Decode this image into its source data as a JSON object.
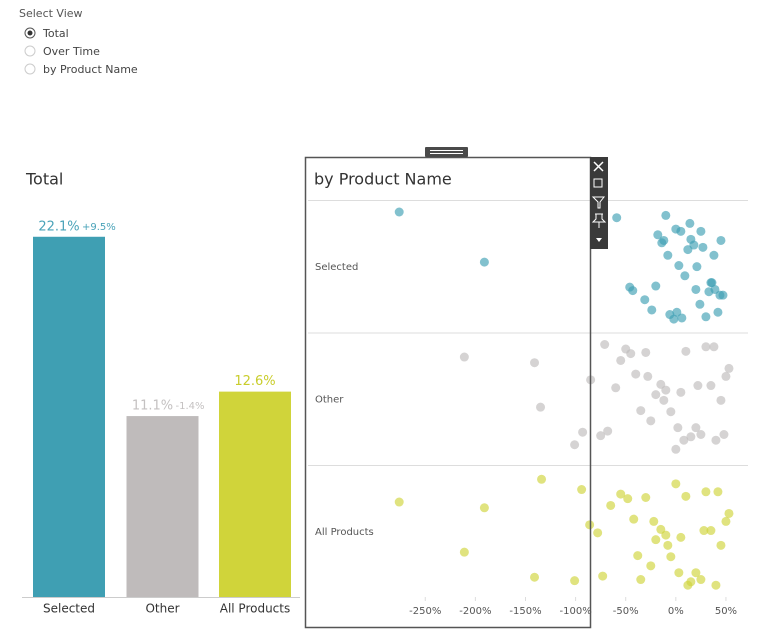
{
  "select_view": {
    "label": "Select View",
    "options": [
      "Total",
      "Over Time",
      "by Product Name"
    ],
    "selected": 0
  },
  "chart_data": [
    {
      "type": "bar",
      "title": "Total",
      "categories": [
        "Selected",
        "Other",
        "All Products"
      ],
      "values": [
        22.1,
        11.1,
        12.6
      ],
      "value_labels": [
        "22.1%",
        "11.1%",
        "12.6%"
      ],
      "change_labels": [
        "+9.5%",
        "-1.4%",
        null
      ],
      "colors": [
        "#3f9fb3",
        "#bfbbbb",
        "#d0d43a"
      ],
      "label_colors": [
        "#4aa3b9",
        "#c4c1c1",
        "#c9cd2c"
      ]
    },
    {
      "type": "scatter",
      "title": "by Product Name",
      "xlim": [
        -367,
        70
      ],
      "xticks": [
        {
          "value": -250,
          "label": "-250%"
        },
        {
          "value": -200,
          "label": "-200%"
        },
        {
          "value": -150,
          "label": "-150%"
        },
        {
          "value": -100,
          "label": "-100%"
        },
        {
          "value": -50,
          "label": "-50%"
        },
        {
          "value": 0,
          "label": "0%"
        },
        {
          "value": 50,
          "label": "50%"
        }
      ],
      "series": [
        {
          "name": "Selected",
          "color": "#3f9fb3",
          "values": [
            -276,
            -191,
            -59,
            -31,
            -46,
            -43,
            -24,
            -18,
            -20,
            -14,
            -10,
            -6,
            -2,
            0,
            3,
            6,
            9,
            12,
            15,
            18,
            21,
            24,
            27,
            30,
            33,
            36,
            39,
            42,
            45,
            47,
            -8,
            5,
            14,
            25,
            38,
            44,
            -12,
            1,
            20,
            35
          ]
        },
        {
          "name": "Other",
          "color": "#bfbbbb",
          "values": [
            -211,
            -135,
            -141,
            -101,
            -93,
            -75,
            -71,
            -85,
            -68,
            -60,
            -55,
            -50,
            -45,
            -40,
            -35,
            -30,
            -25,
            -20,
            -15,
            -10,
            -5,
            0,
            5,
            10,
            15,
            20,
            25,
            30,
            35,
            40,
            45,
            50,
            53,
            -28,
            -12,
            8,
            22,
            38,
            48,
            2
          ]
        },
        {
          "name": "All Products",
          "color": "#d0d43a",
          "values": [
            -276,
            -211,
            -191,
            -134,
            -141,
            -101,
            -94,
            -86,
            -73,
            -78,
            -65,
            -55,
            -48,
            -42,
            -38,
            -30,
            -25,
            -20,
            -15,
            -10,
            -5,
            0,
            5,
            10,
            15,
            20,
            25,
            30,
            35,
            40,
            45,
            50,
            53,
            -22,
            -8,
            12,
            28,
            42,
            -35,
            3
          ]
        }
      ]
    }
  ]
}
